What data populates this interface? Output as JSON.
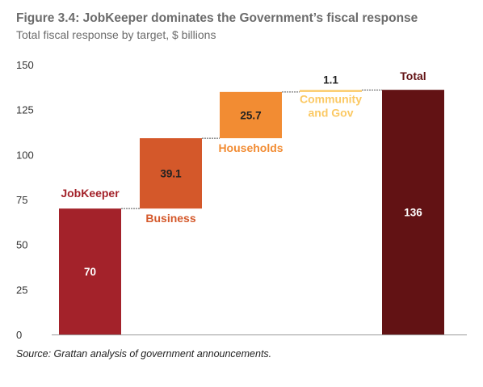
{
  "title": "Figure 3.4: JobKeeper dominates the Government’s fiscal response",
  "subtitle": "Total fiscal response by target, $ billions",
  "source": "Source: Grattan analysis of government announcements.",
  "chart_data": {
    "type": "bar",
    "subtype": "waterfall",
    "categories": [
      "JobKeeper",
      "Business",
      "Households",
      "Community and Gov",
      "Total"
    ],
    "values": [
      70,
      39.1,
      25.7,
      1.1,
      136
    ],
    "bases": [
      0,
      70,
      109.1,
      134.8,
      0
    ],
    "value_labels": [
      "70",
      "39.1",
      "25.7",
      "1.1",
      "136"
    ],
    "category_labels": [
      [
        "JobKeeper"
      ],
      [
        "Business"
      ],
      [
        "Households"
      ],
      [
        "Community",
        "and Gov"
      ],
      [
        "Total"
      ]
    ],
    "colors": [
      "#a3222a",
      "#d4582a",
      "#f28c33",
      "#fbc964",
      "#621214"
    ],
    "label_colors": [
      "#a3222a",
      "#d4582a",
      "#f28c33",
      "#fbc964",
      "#621214"
    ],
    "value_label_colors": [
      "#ffffff",
      "#222222",
      "#222222",
      "#222222",
      "#ffffff"
    ],
    "yticks": [
      0,
      25,
      50,
      75,
      100,
      125,
      150
    ],
    "ylim": [
      0,
      150
    ],
    "xlabel": "",
    "ylabel": "",
    "grid": false
  }
}
